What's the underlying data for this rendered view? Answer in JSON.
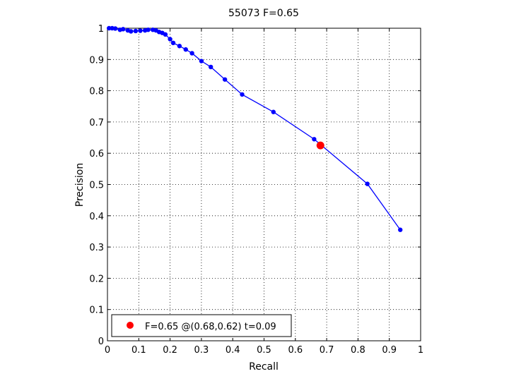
{
  "chart_data": {
    "type": "line",
    "title": "55073 F=0.65",
    "xlabel": "Recall",
    "ylabel": "Precision",
    "xlim": [
      0,
      1
    ],
    "ylim": [
      0,
      1
    ],
    "xticks": [
      0,
      0.1,
      0.2,
      0.3,
      0.4,
      0.5,
      0.6,
      0.7,
      0.8,
      0.9,
      1
    ],
    "yticks": [
      0,
      0.1,
      0.2,
      0.3,
      0.4,
      0.5,
      0.6,
      0.7,
      0.8,
      0.9,
      1
    ],
    "xtick_labels": [
      "0",
      "0.1",
      "0.2",
      "0.3",
      "0.4",
      "0.5",
      "0.6",
      "0.7",
      "0.8",
      "0.9",
      "1"
    ],
    "ytick_labels": [
      "0",
      "0.1",
      "0.2",
      "0.3",
      "0.4",
      "0.5",
      "0.6",
      "0.7",
      "0.8",
      "0.9",
      "1"
    ],
    "grid": true,
    "legend_position": "bottom-left",
    "series": [
      {
        "color": "#0000ff",
        "x": [
          0.935,
          0.83,
          0.66,
          0.53,
          0.43,
          0.375,
          0.33,
          0.3,
          0.27,
          0.25,
          0.23,
          0.21,
          0.2,
          0.185,
          0.175,
          0.165,
          0.155,
          0.145,
          0.13,
          0.12,
          0.105,
          0.09,
          0.075,
          0.065,
          0.05,
          0.04,
          0.025,
          0.015,
          0.005
        ],
        "y": [
          0.355,
          0.502,
          0.645,
          0.732,
          0.788,
          0.836,
          0.876,
          0.895,
          0.92,
          0.932,
          0.943,
          0.953,
          0.965,
          0.98,
          0.985,
          0.988,
          0.993,
          0.995,
          0.995,
          0.993,
          0.992,
          0.991,
          0.99,
          0.993,
          0.997,
          0.995,
          0.999,
          1.0,
          1.0
        ]
      }
    ],
    "highlight": {
      "color": "#ff0000",
      "x": 0.68,
      "y": 0.625
    },
    "legend_entries": [
      "F=0.65 @(0.68,0.62) t=0.09"
    ]
  }
}
